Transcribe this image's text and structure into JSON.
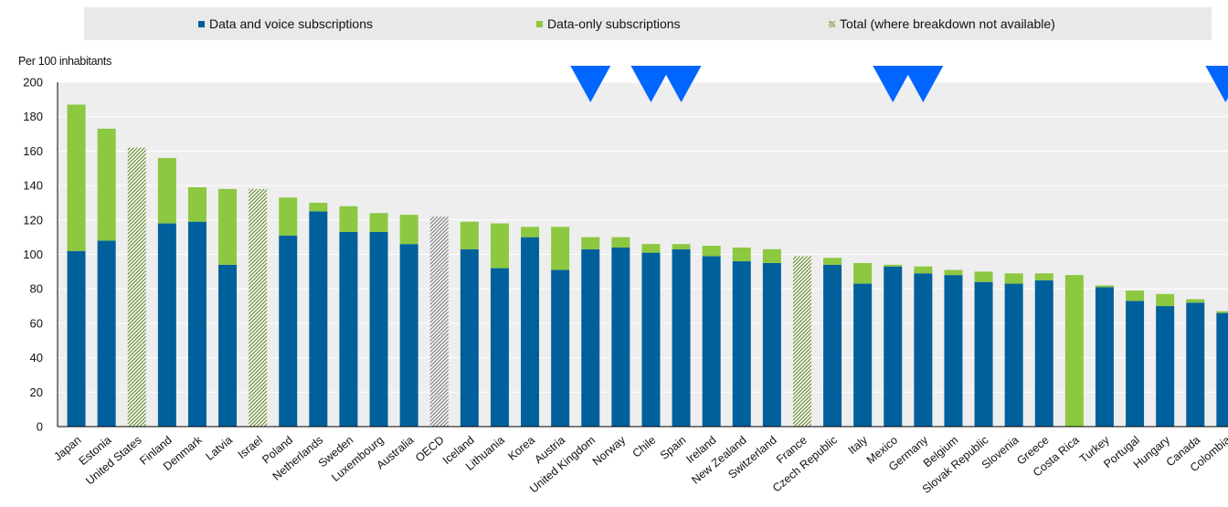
{
  "colors": {
    "data_voice": "#00609c",
    "data_only": "#8cc840",
    "total_pattern": "#6c8f3c",
    "oecd_total": "#8a8a8a",
    "marker": "#0066ff",
    "plot_bg": "#eeeeee",
    "legend_bg": "#e9e9e9"
  },
  "legend": {
    "items": [
      {
        "label": "Data and voice subscriptions",
        "color": "#00609c",
        "symbol": "square"
      },
      {
        "label": "Data-only subscriptions",
        "color": "#8cc840",
        "symbol": "square"
      },
      {
        "label": "Total (where breakdown not available)",
        "color": "#6c8f3c",
        "symbol": "hatched"
      }
    ]
  },
  "chart_data": {
    "type": "bar",
    "stacked": true,
    "ylabel": "Per 100 inhabitants",
    "ylim": [
      0,
      200
    ],
    "yticks": [
      0,
      20,
      40,
      60,
      80,
      100,
      120,
      140,
      160,
      180,
      200
    ],
    "grid": true,
    "legend_position": "top",
    "categories": [
      "Japan",
      "Estonia",
      "United States",
      "Finland",
      "Denmark",
      "Latvia",
      "Israel",
      "Poland",
      "Netherlands",
      "Sweden",
      "Luxembourg",
      "Australia",
      "OECD",
      "Iceland",
      "Lithuania",
      "Korea",
      "Austria",
      "United Kingdom",
      "Norway",
      "Chile",
      "Spain",
      "Ireland",
      "New Zealand",
      "Switzerland",
      "France",
      "Czech Republic",
      "Italy",
      "Mexico",
      "Germany",
      "Belgium",
      "Slovak Republic",
      "Slovenia",
      "Greece",
      "Costa Rica",
      "Turkey",
      "Portugal",
      "Hungary",
      "Canada",
      "Colombia"
    ],
    "series": [
      {
        "name": "Data and voice subscriptions",
        "values": [
          102,
          108,
          null,
          118,
          119,
          94,
          null,
          111,
          125,
          113,
          113,
          106,
          null,
          103,
          92,
          110,
          91,
          103,
          104,
          101,
          103,
          99,
          96,
          95,
          null,
          94,
          83,
          93,
          89,
          88,
          84,
          83,
          85,
          0,
          81,
          73,
          70,
          72,
          66
        ]
      },
      {
        "name": "Data-only subscriptions",
        "values": [
          85,
          65,
          null,
          38,
          20,
          44,
          null,
          22,
          5,
          15,
          11,
          17,
          null,
          16,
          26,
          6,
          25,
          7,
          6,
          5,
          3,
          6,
          8,
          8,
          null,
          4,
          12,
          1,
          4,
          3,
          6,
          6,
          4,
          88,
          1,
          6,
          7,
          2,
          1
        ]
      },
      {
        "name": "Total (where breakdown not available)",
        "values": [
          null,
          null,
          162,
          null,
          null,
          null,
          138,
          null,
          null,
          null,
          null,
          null,
          122,
          null,
          null,
          null,
          null,
          null,
          null,
          null,
          null,
          null,
          null,
          null,
          99,
          null,
          null,
          null,
          null,
          null,
          null,
          null,
          null,
          null,
          null,
          null,
          null,
          null,
          null
        ]
      }
    ],
    "markers": {
      "symbol": "inverted-triangle",
      "categories": [
        "United Kingdom",
        "Chile",
        "Spain",
        "Mexico",
        "Germany",
        "Colombia"
      ]
    }
  }
}
